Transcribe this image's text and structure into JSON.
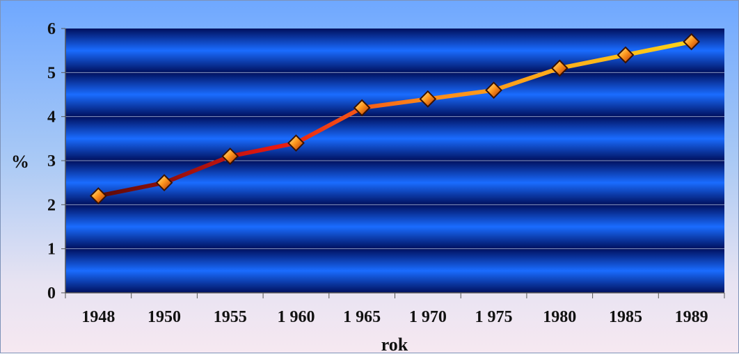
{
  "chart_data": {
    "type": "line",
    "categories": [
      "1948",
      "1950",
      "1955",
      "1 960",
      "1 965",
      "1 970",
      "1 975",
      "1980",
      "1985",
      "1989"
    ],
    "values": [
      2.2,
      2.5,
      3.1,
      3.4,
      4.2,
      4.4,
      4.6,
      5.1,
      5.4,
      5.7
    ],
    "xlabel": "rok",
    "ylabel": "%",
    "ylim": [
      0,
      6
    ],
    "yticks": [
      "0",
      "1",
      "2",
      "3",
      "4",
      "5",
      "6"
    ],
    "grid": true,
    "legend": "none",
    "colors": {
      "line_start": "#5a0a0a",
      "line_mid": "#e81810",
      "line_mid2": "#ff8a1a",
      "line_end": "#ffd21a",
      "marker_fill": "#ff9a20",
      "marker_edge": "#3a1200",
      "plot_dark": "#00105e",
      "plot_light": "#1a6cff"
    }
  }
}
